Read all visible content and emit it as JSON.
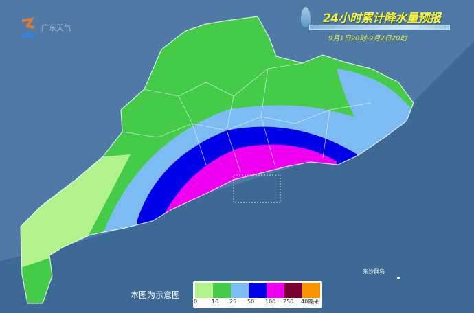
{
  "header": {
    "title": "24小时累计降水量预报",
    "period": "9月1日20时-9月2日20时"
  },
  "logo": {
    "text": "广东天气"
  },
  "map": {
    "note": "本图为示意图",
    "island_label": "东沙群岛"
  },
  "legend": {
    "labels": [
      "0",
      "10",
      "25",
      "50",
      "100",
      "250",
      "400"
    ],
    "unit": "毫米",
    "colors": [
      "#b2f28c",
      "#44cb48",
      "#7cbcf2",
      "#0000e6",
      "#f000f0",
      "#780033",
      "#f89400"
    ]
  },
  "colors": {
    "sea": "#3c6a94",
    "land_outside": "#5b86b2"
  }
}
